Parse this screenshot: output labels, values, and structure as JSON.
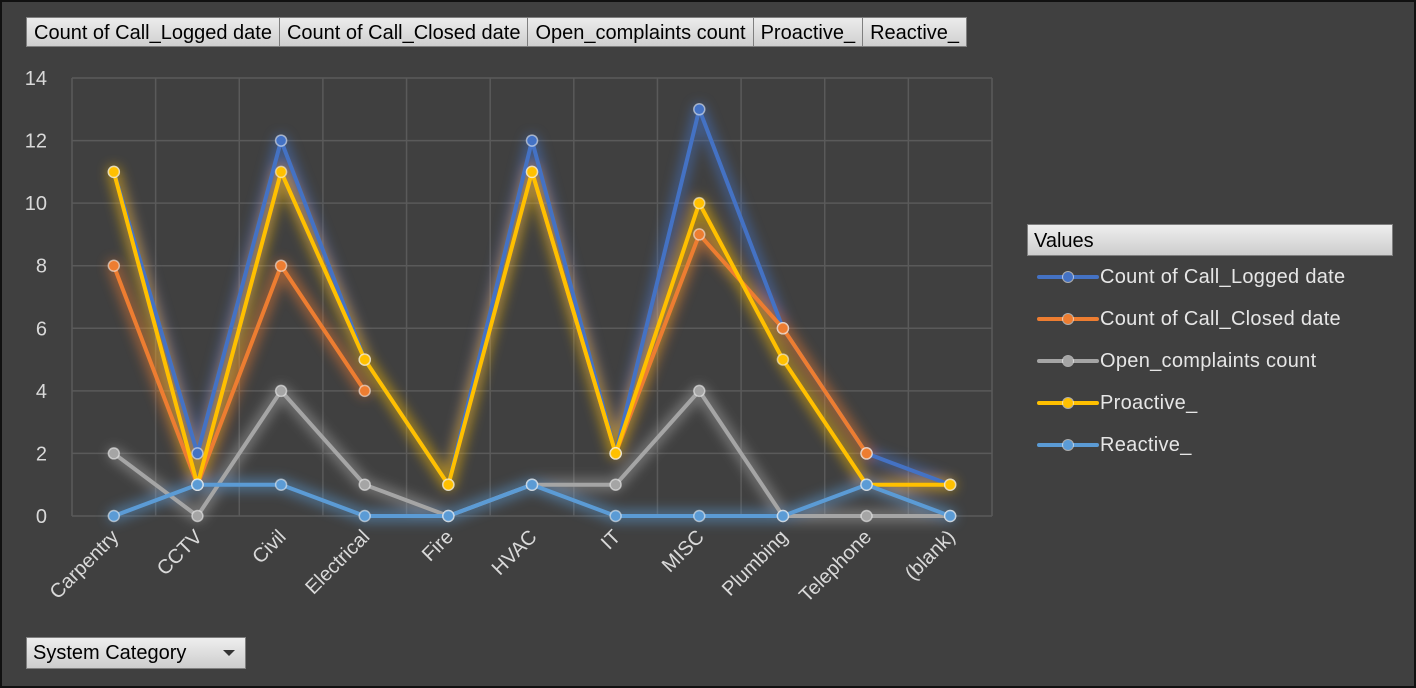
{
  "field_buttons": [
    "Count of Call_Logged date",
    "Count of Call_Closed date",
    "Open_complaints count",
    "Proactive_",
    "Reactive_"
  ],
  "axis_field_button": "System Category",
  "legend_title": "Values",
  "chart_data": {
    "type": "line",
    "categories": [
      "Carpentry",
      "CCTV",
      "Civil",
      "Electrical",
      "Fire",
      "HVAC",
      "IT",
      "MISC",
      "Plumbing",
      "Telephone",
      "(blank)"
    ],
    "ylim": [
      0,
      14
    ],
    "yticks": [
      0,
      2,
      4,
      6,
      8,
      10,
      12,
      14
    ],
    "grid": true,
    "legend_position": "right",
    "series": [
      {
        "name": "Count of Call_Logged date",
        "color": "#4472c4",
        "values": [
          11,
          2,
          12,
          5,
          1,
          12,
          2,
          13,
          6,
          2,
          1
        ]
      },
      {
        "name": "Count of Call_Closed date",
        "color": "#ed7d31",
        "values": [
          8,
          1,
          8,
          4,
          null,
          11,
          2,
          9,
          6,
          2,
          null
        ]
      },
      {
        "name": "Open_complaints count",
        "color": "#a5a5a5",
        "values": [
          2,
          0,
          4,
          1,
          0,
          1,
          1,
          4,
          0,
          0,
          0
        ]
      },
      {
        "name": "Proactive_",
        "color": "#ffc000",
        "values": [
          11,
          1,
          11,
          5,
          1,
          11,
          2,
          10,
          5,
          1,
          1
        ]
      },
      {
        "name": "Reactive_",
        "color": "#5b9bd5",
        "values": [
          0,
          1,
          1,
          0,
          0,
          1,
          0,
          0,
          0,
          1,
          0
        ]
      }
    ]
  }
}
